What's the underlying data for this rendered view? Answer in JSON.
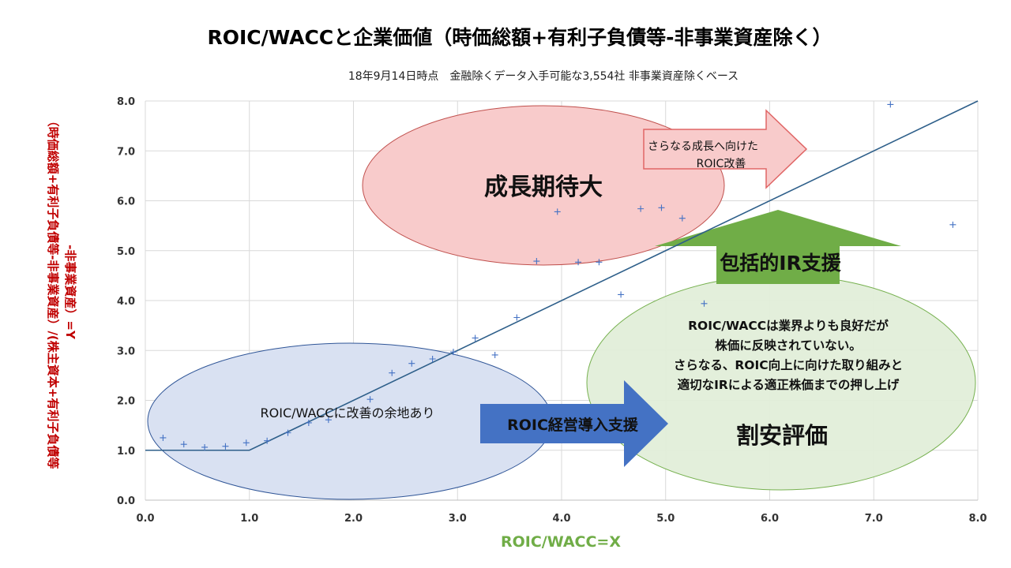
{
  "chart_data": {
    "type": "scatter",
    "title": "ROIC/WACCと企業価値（時価総額+有利子負債等-非事業資産除く）",
    "subtitle": "18年9月14日時点　金融除くデータ入手可能な3,554社  非事業資産除くベース",
    "xlabel": "ROIC/WACC=X",
    "ylabel": [
      "（時価総額+有利子負債等-非事業資産）/(株主資本+有利子負債等",
      "-非事業資産）=Y"
    ],
    "xlim": [
      0,
      8
    ],
    "ylim": [
      0,
      8
    ],
    "xticks": [
      "0.0",
      "1.0",
      "2.0",
      "3.0",
      "4.0",
      "5.0",
      "6.0",
      "7.0",
      "8.0"
    ],
    "yticks": [
      "0.0",
      "1.0",
      "2.0",
      "3.0",
      "4.0",
      "5.0",
      "6.0",
      "7.0",
      "8.0"
    ],
    "grid": true,
    "colors": {
      "title": "#000000",
      "points": "#4472C4",
      "line": "#2E5F8A",
      "xlabel": "#70AD47",
      "ylabel": "#C00000",
      "grid": "#D9D9D9"
    },
    "series": [
      {
        "marker": "plus",
        "points": [
          [
            0.17,
            1.25
          ],
          [
            0.37,
            1.12
          ],
          [
            0.57,
            1.06
          ],
          [
            0.77,
            1.08
          ],
          [
            0.97,
            1.15
          ],
          [
            1.17,
            1.19
          ],
          [
            1.37,
            1.35
          ],
          [
            1.57,
            1.55
          ],
          [
            1.76,
            1.61
          ],
          [
            2.16,
            2.02
          ],
          [
            2.37,
            2.55
          ],
          [
            2.56,
            2.74
          ],
          [
            2.76,
            2.83
          ],
          [
            2.96,
            2.97
          ],
          [
            3.17,
            3.25
          ],
          [
            3.36,
            2.91
          ],
          [
            3.57,
            3.66
          ],
          [
            3.76,
            4.79
          ],
          [
            3.96,
            5.78
          ],
          [
            4.16,
            4.77
          ],
          [
            4.36,
            4.77
          ],
          [
            4.57,
            4.12
          ],
          [
            4.76,
            5.84
          ],
          [
            4.96,
            5.86
          ],
          [
            5.16,
            5.65
          ],
          [
            5.37,
            3.94
          ],
          [
            7.16,
            7.93
          ],
          [
            7.76,
            5.52
          ]
        ]
      },
      {
        "type": "line",
        "points": [
          [
            0,
            1
          ],
          [
            1,
            1
          ],
          [
            8,
            8
          ]
        ]
      }
    ],
    "annotations": {
      "growth_label": "成長期待大",
      "roic_improve_arrow": [
        "さらなる成長へ向けた",
        "ROIC改善"
      ],
      "ir_arrow_label": "包括的IR支援",
      "undervalued_text": [
        "ROIC/WACCは業界よりも良好だが",
        "株価に反映されていない。",
        "さらなる、ROIC向上に向けた取り組みと",
        "適切なIRによる適正株価までの押し上げ"
      ],
      "undervalued_label": "割安評価",
      "improve_room_label": "ROIC/WACCに改善の余地あり",
      "roic_mgmt_arrow_label": "ROIC経営導入支援"
    },
    "annotation_colors": {
      "red_ellipse_fill": "#F8CBCB",
      "red_ellipse_stroke": "#C0504D",
      "green_ellipse_fill": "#E2EFDA",
      "green_ellipse_stroke": "#70AD47",
      "blue_ellipse_fill": "#D9E1F2",
      "blue_ellipse_stroke": "#2F5597",
      "pink_arrow_fill": "#F8CBCB",
      "pink_arrow_stroke": "#E06666",
      "green_arrow_fill": "#70AD47",
      "blue_arrow_fill": "#4472C4"
    }
  }
}
